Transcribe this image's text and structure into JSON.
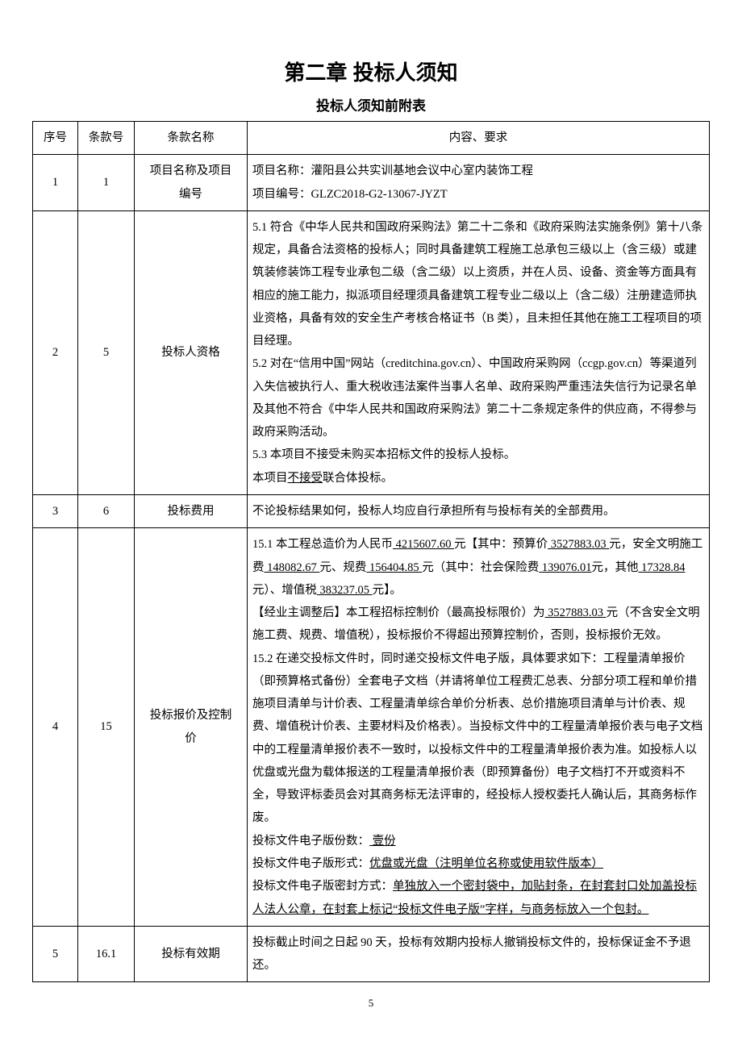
{
  "page": {
    "chapter_title": "第二章 投标人须知",
    "sub_title": "投标人须知前附表",
    "page_number": "5"
  },
  "headers": {
    "seq": "序号",
    "clause": "条款号",
    "name": "条款名称",
    "content": "内容、要求"
  },
  "rows": [
    {
      "seq": "1",
      "clause": "1",
      "name_l1": "项目名称及项目",
      "name_l2": "编号",
      "c_l1": "项目名称：灌阳县公共实训基地会议中心室内装饰工程",
      "c_l2": "项目编号：GLZC2018-G2-13067-JYZT"
    },
    {
      "seq": "2",
      "clause": "5",
      "name": "投标人资格",
      "c_p1": "5.1 符合《中华人民共和国政府采购法》第二十二条和《政府采购法实施条例》第十八条规定，具备合法资格的投标人；同时具备建筑工程施工总承包三级以上（含三级）或建筑装修装饰工程专业承包二级（含二级）以上资质，并在人员、设备、资金等方面具有相应的施工能力，拟派项目经理须具备建筑工程专业二级以上（含二级）注册建造师执业资格，具备有效的安全生产考核合格证书（B 类），且未担任其他在施工工程项目的项目经理。",
      "c_p2": "5.2 对在“信用中国”网站（creditchina.gov.cn）、中国政府采购网（ccgp.gov.cn）等渠道列入失信被执行人、重大税收违法案件当事人名单、政府采购严重违法失信行为记录名单及其他不符合《中华人民共和国政府采购法》第二十二条规定条件的供应商，不得参与政府采购活动。",
      "c_p3": "5.3 本项目不接受未购买本招标文件的投标人投标。",
      "c_p4a": "本项目",
      "c_p4u": "不接受",
      "c_p4b": "联合体投标。"
    },
    {
      "seq": "3",
      "clause": "6",
      "name": "投标费用",
      "c": "不论投标结果如何，投标人均应自行承担所有与投标有关的全部费用。"
    },
    {
      "seq": "4",
      "clause": "15",
      "name_l1": "投标报价及控制",
      "name_l2": "价",
      "c151_a": "15.1 本工程总造价为人民币",
      "c151_u1": " 4215607.60 ",
      "c151_b": "元【其中：预算价",
      "c151_u2": " 3527883.03 ",
      "c151_c": "元，安全文明施工费",
      "c151_u3": " 148082.67 ",
      "c151_d": "元、规费",
      "c151_u4": " 156404.85 ",
      "c151_e": "元（其中：社会保险费",
      "c151_u5": " 139076.01",
      "c151_f": "元，其他",
      "c151_u6": " 17328.84 ",
      "c151_g": "元）、增值税",
      "c151_u7": " 383237.05 ",
      "c151_h": "元】。",
      "c151_adj_a": "【经业主调整后】本工程招标控制价（最高投标限价）为",
      "c151_adj_u": " 3527883.03 ",
      "c151_adj_b": "元（不含安全文明施工费、规费、增值税），投标报价不得超出预算控制价，否则，投标报价无效。",
      "c152": "15.2 在递交投标文件时，同时递交投标文件电子版，具体要求如下：工程量清单报价（即预算格式备份）全套电子文档（并请将单位工程费汇总表、分部分项工程和单价措施项目清单与计价表、工程量清单综合单价分析表、总价措施项目清单与计价表、规费、增值税计价表、主要材料及价格表）。当投标文件中的工程量清单报价表与电子文档中的工程量清单报价表不一致时，以投标文件中的工程量清单报价表为准。如投标人以优盘或光盘为载体报送的工程量清单报价表（即预算备份）电子文档打不开或资料不全，导致评标委员会对其商务标无法评审的，经投标人授权委托人确认后，其商务标作废。",
      "copies_a": "投标文件电子版份数：",
      "copies_u": "  壹份  ",
      "form_a": "投标文件电子版形式：",
      "form_u": "优盘或光盘（注明单位名称或使用软件版本）",
      "seal_a": "投标文件电子版密封方式：",
      "seal_u": "单独放入一个密封袋中，加贴封条，在封套封口处加盖投标人法人公章，在封套上标记“投标文件电子版”字样，与商务标放入一个包封。"
    },
    {
      "seq": "5",
      "clause": "16.1",
      "name": "投标有效期",
      "c": "投标截止时间之日起 90 天，投标有效期内投标人撤销投标文件的，投标保证金不予退还。"
    }
  ]
}
